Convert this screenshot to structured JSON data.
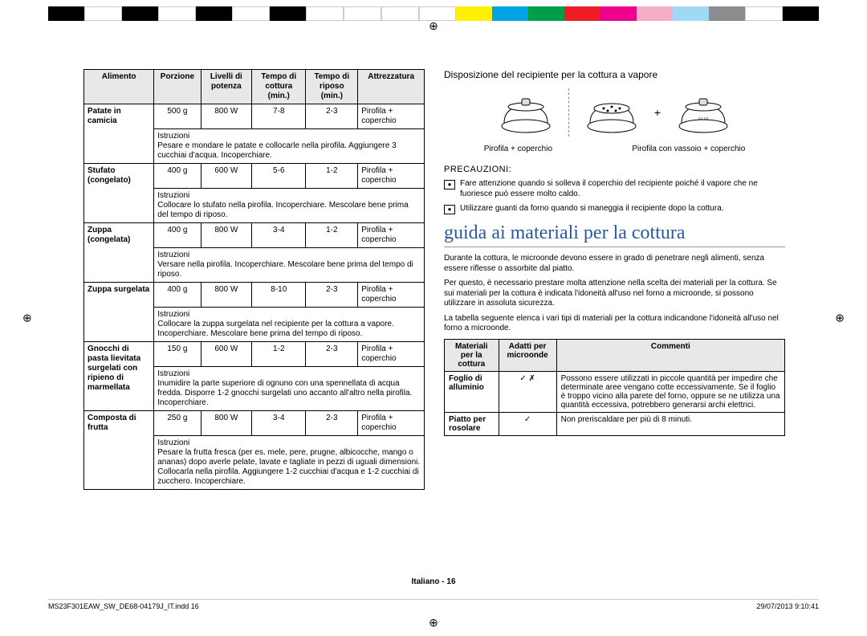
{
  "colorbar": [
    "#000000",
    "#ffffff",
    "#000000",
    "#ffffff",
    "#000000",
    "#ffffff",
    "#000000",
    "#ffffff",
    "#ffffff",
    "#ffffff",
    "#ffffff",
    "#fff200",
    "#00a4e4",
    "#009e49",
    "#ee1c25",
    "#ec008c",
    "#f7adc3",
    "#a0d9f6",
    "#8a8c8e",
    "#ffffff",
    "#000000"
  ],
  "reg_glyph": "⊕",
  "cooking_table": {
    "headers": [
      "Alimento",
      "Porzione",
      "Livelli di potenza",
      "Tempo di cottura (min.)",
      "Tempo di riposo (min.)",
      "Attrezzatura"
    ],
    "rows": [
      {
        "name": "Patate in camicia",
        "porzione": "500 g",
        "potenza": "800 W",
        "cottura": "7-8",
        "riposo": "2-3",
        "attrezz": "Pirofila + coperchio",
        "instr": "Pesare e mondare le patate e collocarle nella pirofila. Aggiungere 3 cucchiai d'acqua. Incoperchiare."
      },
      {
        "name": "Stufato (congelato)",
        "porzione": "400 g",
        "potenza": "600 W",
        "cottura": "5-6",
        "riposo": "1-2",
        "attrezz": "Pirofila + coperchio",
        "instr": "Collocare lo stufato nella pirofila. Incoperchiare. Mescolare bene prima del tempo di riposo."
      },
      {
        "name": "Zuppa (congelata)",
        "porzione": "400 g",
        "potenza": "800 W",
        "cottura": "3-4",
        "riposo": "1-2",
        "attrezz": "Pirofila + coperchio",
        "instr": "Versare nella pirofila. Incoperchiare. Mescolare bene prima del tempo di riposo."
      },
      {
        "name": "Zuppa surgelata",
        "porzione": "400 g",
        "potenza": "800 W",
        "cottura": "8-10",
        "riposo": "2-3",
        "attrezz": "Pirofila + coperchio",
        "instr": "Collocare la zuppa surgelata nel recipiente per la cottura a vapore. Incoperchiare. Mescolare bene prima del tempo di riposo."
      },
      {
        "name": "Gnocchi di pasta lievitata surgelati con ripieno di marmellata",
        "porzione": "150 g",
        "potenza": "600 W",
        "cottura": "1-2",
        "riposo": "2-3",
        "attrezz": "Pirofila + coperchio",
        "instr": "Inumidire la parte superiore di ognuno con una spennellata di acqua fredda. Disporre 1-2 gnocchi surgelati uno accanto all'altro nella pirofila. Incoperchiare."
      },
      {
        "name": "Composta di frutta",
        "porzione": "250 g",
        "potenza": "800 W",
        "cottura": "3-4",
        "riposo": "2-3",
        "attrezz": "Pirofila + coperchio",
        "instr": "Pesare la frutta fresca (per es. mele, pere, prugne, albicocche, mango o ananas) dopo averle pelate, lavate e tagliate in pezzi di uguali dimensioni. Collocarla nella pirofila. Aggiungere 1-2 cucchiai d'acqua e 1-2 cucchiai di zucchero. Incoperchiare."
      }
    ],
    "instr_label": "Istruzioni"
  },
  "right": {
    "dispo_title": "Disposizione del recipiente per la cottura a vapore",
    "plus": "+",
    "cap1": "Pirofila + coperchio",
    "cap2": "Pirofila con vassoio + coperchio",
    "prec_title": "PRECAUZIONI:",
    "prec1": "Fare attenzione quando si solleva il coperchio del recipiente poiché il vapore che ne fuoriesce può essere molto caldo.",
    "prec2": "Utilizzare guanti da forno quando si maneggia il recipiente dopo la cottura.",
    "section_title": "guida ai materiali per la cottura",
    "para1": "Durante la cottura, le microonde devono essere in grado di penetrare negli alimenti, senza essere riflesse o assorbite dal piatto.",
    "para2": "Per questo, è necessario prestare molta attenzione nella scelta dei materiali per la cottura. Se sui materiali per la cottura è indicata l'idoneità all'uso nel forno a microonde, si possono utilizzare in assoluta sicurezza.",
    "para3": "La tabella seguente elenca i vari tipi di materiali per la cottura indicandone l'idoneità all'uso nel forno a microonde.",
    "mat_headers": [
      "Materiali per la cottura",
      "Adatti per microonde",
      "Commenti"
    ],
    "mat_rows": [
      {
        "m": "Foglio di alluminio",
        "a": "✓ ✗",
        "c": "Possono essere utilizzati in piccole quantità per impedire che determinate aree vengano cotte eccessivamente. Se il foglio è troppo vicino alla parete del forno, oppure se ne utilizza una quantità eccessiva, potrebbero generarsi archi elettrici."
      },
      {
        "m": "Piatto per rosolare",
        "a": "✓",
        "c": "Non preriscaldare per più di 8 minuti."
      }
    ]
  },
  "footer": {
    "page": "Italiano - 16",
    "file": "MS23F301EAW_SW_DE68-04179J_IT.indd   16",
    "date": "29/07/2013   9:10:41"
  }
}
